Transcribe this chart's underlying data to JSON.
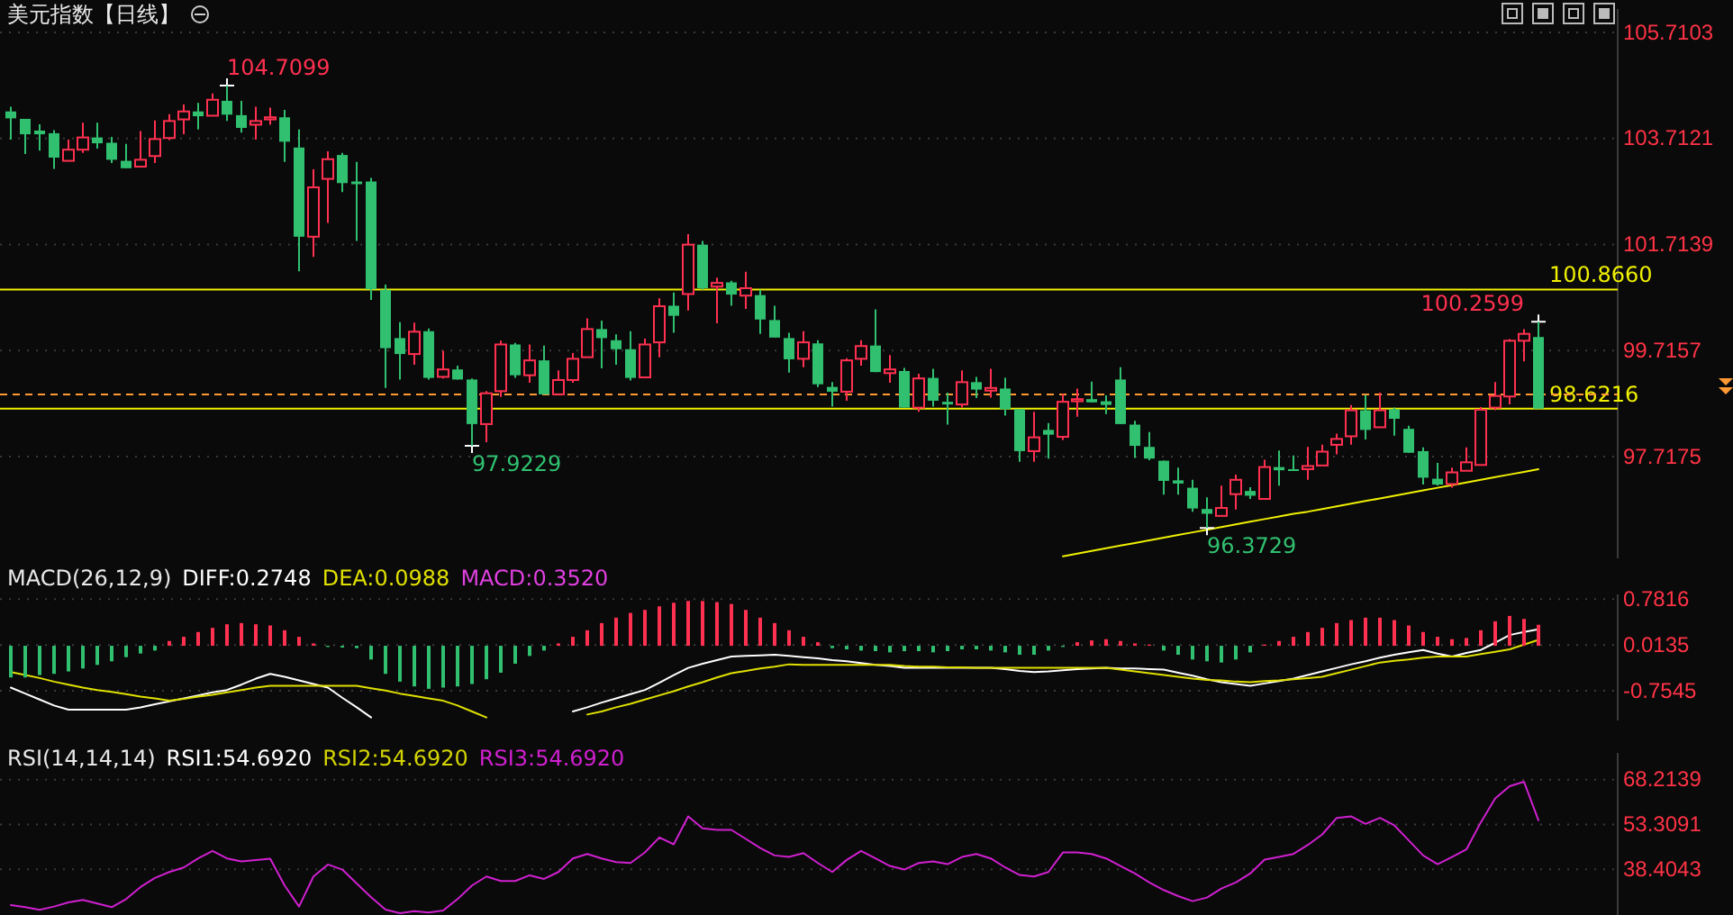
{
  "chart_data": [
    {
      "type": "candlestick",
      "title": "美元指数【日线】",
      "categories": [
        null,
        null,
        null,
        null,
        null,
        null,
        null,
        null,
        null,
        null,
        null,
        null,
        null,
        null,
        null,
        null,
        null,
        null,
        null,
        null,
        null,
        null,
        null,
        null,
        null,
        null,
        null,
        null,
        null,
        null,
        null,
        null,
        null,
        null,
        null,
        null,
        null,
        null,
        null,
        null,
        null,
        null,
        null,
        null,
        null,
        null,
        null,
        null,
        null,
        null,
        null,
        null,
        null,
        null,
        null,
        null,
        null,
        null,
        null,
        null,
        null,
        null,
        null,
        null,
        null,
        null,
        null,
        null,
        null,
        null,
        null,
        null,
        null,
        null,
        null,
        null,
        null,
        null,
        null,
        null,
        null,
        null,
        null,
        null,
        null,
        null,
        null,
        null,
        null,
        null,
        null,
        null,
        null,
        null,
        null,
        null,
        null,
        null,
        null,
        null,
        null,
        null,
        null,
        null,
        null,
        null,
        null
      ],
      "ohlc": [
        [
          104.22,
          104.31,
          103.69,
          104.09
        ],
        [
          104.08,
          104.08,
          103.42,
          103.79
        ],
        [
          103.86,
          103.98,
          103.48,
          103.79
        ],
        [
          103.81,
          103.87,
          103.14,
          103.35
        ],
        [
          103.29,
          103.69,
          103.29,
          103.5
        ],
        [
          103.5,
          104.01,
          103.44,
          103.73
        ],
        [
          103.73,
          104.01,
          103.52,
          103.62
        ],
        [
          103.63,
          103.74,
          103.25,
          103.31
        ],
        [
          103.29,
          103.61,
          103.15,
          103.15
        ],
        [
          103.18,
          103.85,
          103.18,
          103.31
        ],
        [
          103.38,
          104.05,
          103.25,
          103.7
        ],
        [
          103.72,
          104.17,
          103.68,
          104.04
        ],
        [
          104.07,
          104.35,
          103.79,
          104.22
        ],
        [
          104.22,
          104.38,
          103.88,
          104.13
        ],
        [
          104.14,
          104.56,
          104.14,
          104.44
        ],
        [
          104.42,
          104.7099,
          104.04,
          104.16
        ],
        [
          104.15,
          104.42,
          103.82,
          103.91
        ],
        [
          103.97,
          104.31,
          103.69,
          104.04
        ],
        [
          104.07,
          104.29,
          103.97,
          104.11
        ],
        [
          104.11,
          104.25,
          103.27,
          103.65
        ],
        [
          103.54,
          103.88,
          101.21,
          101.86
        ],
        [
          101.86,
          103.13,
          101.48,
          102.79
        ],
        [
          102.95,
          103.47,
          102.12,
          103.32
        ],
        [
          103.4,
          103.44,
          102.7,
          102.87
        ],
        [
          102.9,
          103.27,
          101.78,
          102.85
        ],
        [
          102.9,
          102.97,
          100.67,
          100.87
        ],
        [
          100.86,
          100.96,
          99.01,
          99.76
        ],
        [
          99.95,
          100.25,
          99.17,
          99.65
        ],
        [
          99.65,
          100.24,
          99.45,
          100.07
        ],
        [
          100.08,
          100.13,
          99.17,
          99.2
        ],
        [
          99.22,
          99.71,
          99.19,
          99.36
        ],
        [
          99.36,
          99.43,
          99.17,
          99.17
        ],
        [
          99.17,
          99.19,
          97.9229,
          98.33
        ],
        [
          98.33,
          98.95,
          97.99,
          98.91
        ],
        [
          98.95,
          99.9,
          98.84,
          99.83
        ],
        [
          99.83,
          99.86,
          99.2,
          99.25
        ],
        [
          99.25,
          99.83,
          99.11,
          99.53
        ],
        [
          99.53,
          99.81,
          98.89,
          98.89
        ],
        [
          98.89,
          99.34,
          98.89,
          99.16
        ],
        [
          99.16,
          99.67,
          99.11,
          99.56
        ],
        [
          99.59,
          100.32,
          99.59,
          100.12
        ],
        [
          100.12,
          100.28,
          99.38,
          99.95
        ],
        [
          99.91,
          100.02,
          99.45,
          99.74
        ],
        [
          99.74,
          100.08,
          99.15,
          99.2
        ],
        [
          99.21,
          99.94,
          99.21,
          99.83
        ],
        [
          99.87,
          100.7,
          99.59,
          100.55
        ],
        [
          100.56,
          100.81,
          100.05,
          100.37
        ],
        [
          100.78,
          101.91,
          100.47,
          101.71
        ],
        [
          101.71,
          101.78,
          100.86,
          100.89
        ],
        [
          100.92,
          101.09,
          100.23,
          100.99
        ],
        [
          101.0,
          101.03,
          100.56,
          100.77
        ],
        [
          100.75,
          101.2,
          100.5,
          100.89
        ],
        [
          100.76,
          100.86,
          100.03,
          100.3
        ],
        [
          100.29,
          100.56,
          99.96,
          99.96
        ],
        [
          99.95,
          100.05,
          99.3,
          99.55
        ],
        [
          99.56,
          100.08,
          99.4,
          99.87
        ],
        [
          99.85,
          99.91,
          99.03,
          99.08
        ],
        [
          99.03,
          99.12,
          98.66,
          98.94
        ],
        [
          98.94,
          99.57,
          98.77,
          99.53
        ],
        [
          99.56,
          99.91,
          99.43,
          99.8
        ],
        [
          99.81,
          100.49,
          99.31,
          99.31
        ],
        [
          99.29,
          99.63,
          99.11,
          99.36
        ],
        [
          99.33,
          99.39,
          98.64,
          98.64
        ],
        [
          98.64,
          99.28,
          98.56,
          99.19
        ],
        [
          99.2,
          99.37,
          98.66,
          98.77
        ],
        [
          98.75,
          98.92,
          98.32,
          98.7
        ],
        [
          98.7,
          99.34,
          98.64,
          99.12
        ],
        [
          99.12,
          99.22,
          98.82,
          98.98
        ],
        [
          98.96,
          99.37,
          98.83,
          99.01
        ],
        [
          99.0,
          99.2,
          98.49,
          98.61
        ],
        [
          98.61,
          98.61,
          97.62,
          97.82
        ],
        [
          97.82,
          98.56,
          97.62,
          98.08
        ],
        [
          98.22,
          98.35,
          97.68,
          98.13
        ],
        [
          98.09,
          98.9,
          98.03,
          98.75
        ],
        [
          98.76,
          99.0,
          98.47,
          98.8
        ],
        [
          98.8,
          99.13,
          98.74,
          98.74
        ],
        [
          98.76,
          98.87,
          98.52,
          98.69
        ],
        [
          99.17,
          99.4,
          98.33,
          98.33
        ],
        [
          98.32,
          98.39,
          97.69,
          97.92
        ],
        [
          97.9,
          98.18,
          97.65,
          97.68
        ],
        [
          97.64,
          97.64,
          97.0,
          97.26
        ],
        [
          97.27,
          97.51,
          97.0,
          97.21
        ],
        [
          97.13,
          97.28,
          96.68,
          96.74
        ],
        [
          96.73,
          96.95,
          96.3729,
          96.64
        ],
        [
          96.6,
          97.17,
          96.6,
          96.75
        ],
        [
          97.01,
          97.38,
          96.72,
          97.28
        ],
        [
          97.07,
          97.14,
          96.92,
          96.98
        ],
        [
          96.92,
          97.66,
          96.92,
          97.52
        ],
        [
          97.52,
          97.83,
          97.17,
          97.46
        ],
        [
          97.48,
          97.74,
          97.45,
          97.45
        ],
        [
          97.48,
          97.9,
          97.28,
          97.54
        ],
        [
          97.55,
          97.94,
          97.55,
          97.81
        ],
        [
          97.94,
          98.15,
          97.76,
          98.05
        ],
        [
          98.1,
          98.69,
          97.94,
          98.59
        ],
        [
          98.59,
          98.88,
          98.04,
          98.22
        ],
        [
          98.27,
          98.92,
          98.27,
          98.59
        ],
        [
          98.61,
          98.64,
          98.11,
          98.43
        ],
        [
          98.24,
          98.3,
          97.79,
          97.79
        ],
        [
          97.82,
          97.89,
          97.19,
          97.32
        ],
        [
          97.3,
          97.6,
          97.17,
          97.19
        ],
        [
          97.2,
          97.51,
          97.13,
          97.42
        ],
        [
          97.45,
          97.89,
          97.45,
          97.61
        ],
        [
          97.56,
          98.65,
          97.56,
          98.6
        ],
        [
          98.64,
          99.12,
          98.59,
          98.86
        ],
        [
          98.85,
          99.93,
          98.7,
          99.9
        ],
        [
          99.9,
          100.12,
          99.51,
          100.03
        ],
        [
          99.97,
          100.2599,
          98.62,
          98.62
        ]
      ],
      "series": [
        {
          "type": "line",
          "color": "#f0f000",
          "values": [
            null,
            null,
            null,
            null,
            null,
            null,
            null,
            null,
            null,
            null,
            null,
            null,
            null,
            null,
            null,
            null,
            null,
            null,
            null,
            null,
            null,
            null,
            null,
            null,
            null,
            null,
            null,
            null,
            null,
            null,
            null,
            null,
            null,
            null,
            null,
            null,
            null,
            null,
            null,
            null,
            null,
            null,
            null,
            null,
            null,
            null,
            null,
            null,
            null,
            null,
            null,
            null,
            null,
            null,
            null,
            null,
            null,
            null,
            null,
            null,
            null,
            null,
            null,
            null,
            null,
            null,
            null,
            null,
            null,
            null,
            null,
            null,
            null,
            95.84,
            95.89,
            95.94,
            95.99,
            96.04,
            96.09,
            96.14,
            96.19,
            96.24,
            96.29,
            96.34,
            96.39,
            96.44,
            96.49,
            96.54,
            96.59,
            96.64,
            96.68,
            96.73,
            96.78,
            96.83,
            96.88,
            96.93,
            96.98,
            97.03,
            97.08,
            97.13,
            97.18,
            97.23,
            97.28,
            97.33,
            97.38,
            97.43,
            97.48
          ]
        }
      ],
      "ylim": [
        95.8,
        106.15
      ],
      "yticks": [
        105.7103,
        103.7121,
        101.7139,
        99.7157,
        97.7175
      ],
      "grid": "y",
      "tick_labels": "y",
      "ref_lines": [
        {
          "axis": "y",
          "value": 100.866,
          "label": "100.8660",
          "color": "#f0f000"
        },
        {
          "axis": "y",
          "value": 98.6216,
          "label": "98.6216",
          "color": "#f0f000"
        },
        {
          "axis": "y",
          "value": 98.89,
          "color": "#ff9933",
          "line_style": "dashed"
        }
      ],
      "annotations": [
        "104.7099",
        "97.9229",
        "96.3729",
        "100.2599"
      ]
    },
    {
      "type": "bar",
      "title": "MACD(26,12,9)",
      "categories": [
        null,
        null,
        null,
        null,
        null,
        null,
        null,
        null,
        null,
        null,
        null,
        null,
        null,
        null,
        null,
        null,
        null,
        null,
        null,
        null,
        null,
        null,
        null,
        null,
        null,
        null,
        null,
        null,
        null,
        null,
        null,
        null,
        null,
        null,
        null,
        null,
        null,
        null,
        null,
        null,
        null,
        null,
        null,
        null,
        null,
        null,
        null,
        null,
        null,
        null,
        null,
        null,
        null,
        null,
        null,
        null,
        null,
        null,
        null,
        null,
        null,
        null,
        null,
        null,
        null,
        null,
        null,
        null,
        null,
        null,
        null,
        null,
        null,
        null,
        null,
        null,
        null,
        null,
        null,
        null,
        null,
        null,
        null,
        null,
        null,
        null,
        null,
        null,
        null,
        null,
        null,
        null,
        null,
        null,
        null,
        null,
        null,
        null,
        null,
        null,
        null,
        null,
        null,
        null,
        null,
        null,
        null
      ],
      "series": [
        {
          "type": "line",
          "name": "DIFF:0.2748",
          "color": "#ffffff",
          "values": [
            -0.7,
            -0.8,
            -0.9,
            -1.0,
            -1.07,
            -1.07,
            -1.07,
            -1.07,
            -1.07,
            -1.03,
            -0.98,
            -0.93,
            -0.88,
            -0.83,
            -0.78,
            -0.74,
            -0.65,
            -0.55,
            -0.47,
            -0.52,
            -0.58,
            -0.64,
            -0.7,
            -0.87,
            -1.03,
            -1.2,
            null,
            null,
            null,
            null,
            null,
            null,
            null,
            null,
            null,
            null,
            null,
            null,
            null,
            -1.1,
            -1.03,
            -0.95,
            -0.88,
            -0.81,
            -0.74,
            -0.62,
            -0.49,
            -0.37,
            -0.3,
            -0.24,
            -0.18,
            -0.17,
            -0.16,
            -0.15,
            -0.17,
            -0.19,
            -0.21,
            -0.24,
            -0.26,
            -0.29,
            -0.32,
            -0.34,
            -0.37,
            -0.37,
            -0.37,
            -0.37,
            -0.37,
            -0.37,
            -0.37,
            -0.39,
            -0.42,
            -0.44,
            -0.43,
            -0.41,
            -0.39,
            -0.38,
            -0.37,
            -0.38,
            -0.38,
            -0.39,
            -0.4,
            -0.45,
            -0.5,
            -0.56,
            -0.61,
            -0.64,
            -0.67,
            -0.63,
            -0.59,
            -0.55,
            -0.49,
            -0.43,
            -0.37,
            -0.31,
            -0.26,
            -0.2,
            -0.15,
            -0.11,
            -0.07,
            -0.13,
            -0.18,
            -0.12,
            -0.07,
            0.05,
            0.18,
            0.23,
            0.2748
          ]
        },
        {
          "type": "line",
          "name": "DEA:0.0988",
          "color": "#e0e000",
          "values": [
            -0.44,
            -0.49,
            -0.54,
            -0.6,
            -0.65,
            -0.7,
            -0.74,
            -0.77,
            -0.81,
            -0.85,
            -0.88,
            -0.92,
            -0.89,
            -0.85,
            -0.82,
            -0.78,
            -0.74,
            -0.7,
            -0.67,
            -0.67,
            -0.67,
            -0.67,
            -0.67,
            -0.67,
            -0.67,
            -0.71,
            -0.75,
            -0.8,
            -0.84,
            -0.88,
            -0.92,
            -1.0,
            -1.1,
            -1.2,
            null,
            null,
            null,
            null,
            null,
            null,
            -1.15,
            -1.1,
            -1.03,
            -0.97,
            -0.9,
            -0.83,
            -0.76,
            -0.68,
            -0.61,
            -0.53,
            -0.46,
            -0.42,
            -0.38,
            -0.35,
            -0.31,
            -0.32,
            -0.32,
            -0.32,
            -0.32,
            -0.32,
            -0.32,
            -0.32,
            -0.34,
            -0.35,
            -0.35,
            -0.36,
            -0.36,
            -0.37,
            -0.37,
            -0.37,
            -0.37,
            -0.37,
            -0.37,
            -0.37,
            -0.37,
            -0.37,
            -0.37,
            -0.4,
            -0.43,
            -0.46,
            -0.49,
            -0.52,
            -0.55,
            -0.57,
            -0.58,
            -0.6,
            -0.61,
            -0.59,
            -0.58,
            -0.56,
            -0.54,
            -0.52,
            -0.46,
            -0.4,
            -0.34,
            -0.28,
            -0.25,
            -0.23,
            -0.2,
            -0.18,
            -0.18,
            -0.18,
            -0.14,
            -0.1,
            -0.06,
            0.02,
            0.0988
          ]
        },
        {
          "type": "bar",
          "name": "MACD:0.3520",
          "color": "#e040e0",
          "values": [
            -0.53,
            -0.53,
            -0.49,
            -0.47,
            -0.43,
            -0.38,
            -0.32,
            -0.26,
            -0.19,
            -0.13,
            -0.08,
            0.08,
            0.15,
            0.23,
            0.3,
            0.36,
            0.38,
            0.36,
            0.34,
            0.26,
            0.15,
            0.04,
            -0.02,
            -0.03,
            -0.04,
            -0.23,
            -0.47,
            -0.6,
            -0.68,
            -0.72,
            -0.7,
            -0.68,
            -0.64,
            -0.56,
            -0.45,
            -0.3,
            -0.17,
            -0.08,
            0.04,
            0.15,
            0.26,
            0.38,
            0.47,
            0.55,
            0.6,
            0.66,
            0.72,
            0.75,
            0.75,
            0.73,
            0.7,
            0.6,
            0.47,
            0.38,
            0.26,
            0.15,
            0.06,
            -0.04,
            -0.06,
            -0.08,
            -0.09,
            -0.11,
            -0.09,
            -0.09,
            -0.11,
            -0.09,
            -0.06,
            -0.06,
            -0.08,
            -0.11,
            -0.15,
            -0.15,
            -0.08,
            -0.02,
            0.06,
            0.09,
            0.11,
            0.08,
            0.04,
            0.02,
            -0.08,
            -0.15,
            -0.23,
            -0.26,
            -0.28,
            -0.23,
            -0.11,
            0.02,
            0.08,
            0.15,
            0.23,
            0.3,
            0.38,
            0.43,
            0.47,
            0.47,
            0.43,
            0.34,
            0.23,
            0.15,
            0.11,
            0.13,
            0.26,
            0.41,
            0.5,
            0.45,
            0.352
          ],
          "colors": [
            "#30c070",
            "#30c070",
            "#30c070",
            "#30c070",
            "#30c070",
            "#30c070",
            "#30c070",
            "#30c070",
            "#30c070",
            "#30c070",
            "#30c070",
            "#ff3050",
            "#ff3050",
            "#ff3050",
            "#ff3050",
            "#ff3050",
            "#ff3050",
            "#ff3050",
            "#ff3050",
            "#ff3050",
            "#ff3050",
            "#ff3050",
            "#30c070",
            "#30c070",
            "#30c070",
            "#30c070",
            "#30c070",
            "#30c070",
            "#30c070",
            "#30c070",
            "#30c070",
            "#30c070",
            "#30c070",
            "#30c070",
            "#30c070",
            "#30c070",
            "#30c070",
            "#30c070",
            "#ff3050",
            "#ff3050",
            "#ff3050",
            "#ff3050",
            "#ff3050",
            "#ff3050",
            "#ff3050",
            "#ff3050",
            "#ff3050",
            "#ff3050",
            "#ff3050",
            "#ff3050",
            "#ff3050",
            "#ff3050",
            "#ff3050",
            "#ff3050",
            "#ff3050",
            "#ff3050",
            "#ff3050",
            "#30c070",
            "#30c070",
            "#30c070",
            "#30c070",
            "#30c070",
            "#30c070",
            "#30c070",
            "#30c070",
            "#30c070",
            "#30c070",
            "#30c070",
            "#30c070",
            "#30c070",
            "#30c070",
            "#30c070",
            "#30c070",
            "#30c070",
            "#ff3050",
            "#ff3050",
            "#ff3050",
            "#ff3050",
            "#ff3050",
            "#ff3050",
            "#30c070",
            "#30c070",
            "#30c070",
            "#30c070",
            "#30c070",
            "#30c070",
            "#30c070",
            "#ff3050",
            "#ff3050",
            "#ff3050",
            "#ff3050",
            "#ff3050",
            "#ff3050",
            "#ff3050",
            "#ff3050",
            "#ff3050",
            "#ff3050",
            "#ff3050",
            "#ff3050",
            "#ff3050",
            "#ff3050",
            "#ff3050",
            "#ff3050",
            "#ff3050",
            "#ff3050",
            "#ff3050",
            "#ff3050"
          ]
        }
      ],
      "ylim": [
        -1.25,
        0.86
      ],
      "yticks": [
        0.7816,
        0.0135,
        -0.7545
      ],
      "grid": "y",
      "tick_labels": "y",
      "legend": "top left"
    },
    {
      "type": "line",
      "title": "RSI(14,14,14)",
      "categories": [
        null,
        null,
        null,
        null,
        null,
        null,
        null,
        null,
        null,
        null,
        null,
        null,
        null,
        null,
        null,
        null,
        null,
        null,
        null,
        null,
        null,
        null,
        null,
        null,
        null,
        null,
        null,
        null,
        null,
        null,
        null,
        null,
        null,
        null,
        null,
        null,
        null,
        null,
        null,
        null,
        null,
        null,
        null,
        null,
        null,
        null,
        null,
        null,
        null,
        null,
        null,
        null,
        null,
        null,
        null,
        null,
        null,
        null,
        null,
        null,
        null,
        null,
        null,
        null,
        null,
        null,
        null,
        null,
        null,
        null,
        null,
        null,
        null,
        null,
        null,
        null,
        null,
        null,
        null,
        null,
        null,
        null,
        null,
        null,
        null,
        null,
        null,
        null,
        null,
        null,
        null,
        null,
        null,
        null,
        null,
        null,
        null,
        null,
        null,
        null,
        null,
        null,
        null,
        null,
        null,
        null,
        null
      ],
      "series": [
        {
          "name": "RSI1:54.6920",
          "color": "#ffffff",
          "values": [
            null,
            null,
            null,
            null,
            null,
            null,
            null,
            null,
            null,
            null,
            null,
            null,
            null,
            null,
            null,
            null,
            null,
            null,
            null,
            null,
            null,
            null,
            null,
            null,
            null,
            null,
            null,
            null,
            null,
            null,
            null,
            null,
            null,
            null,
            null,
            null,
            null,
            null,
            null,
            null,
            null,
            null,
            null,
            null,
            null,
            null,
            null,
            null,
            null,
            null,
            null,
            null,
            null,
            null,
            null,
            null,
            null,
            null,
            null,
            null,
            null,
            null,
            null,
            null,
            null,
            null,
            null,
            null,
            null,
            null,
            null,
            null,
            null,
            null,
            null,
            null,
            null,
            null,
            null,
            null,
            null,
            null,
            null,
            null,
            null,
            null,
            null,
            null,
            null,
            null,
            null,
            null,
            null,
            null,
            null,
            null,
            null,
            null,
            null,
            null,
            null,
            null,
            null,
            null,
            null,
            null,
            null
          ]
        },
        {
          "name": "RSI2:54.6920",
          "color": "#d4d400",
          "values": [
            null,
            null,
            null,
            null,
            null,
            null,
            null,
            null,
            null,
            null,
            null,
            null,
            null,
            null,
            null,
            null,
            null,
            null,
            null,
            null,
            null,
            null,
            null,
            null,
            null,
            null,
            null,
            null,
            null,
            null,
            null,
            null,
            null,
            null,
            null,
            null,
            null,
            null,
            null,
            null,
            null,
            null,
            null,
            null,
            null,
            null,
            null,
            null,
            null,
            null,
            null,
            null,
            null,
            null,
            null,
            null,
            null,
            null,
            null,
            null,
            null,
            null,
            null,
            null,
            null,
            null,
            null,
            null,
            null,
            null,
            null,
            null,
            null,
            null,
            null,
            null,
            null,
            null,
            null,
            null,
            null,
            null,
            null,
            null,
            null,
            null,
            null,
            null,
            null,
            null,
            null,
            null,
            null,
            null,
            null,
            null,
            null,
            null,
            null,
            null,
            null,
            null,
            null,
            null,
            null,
            null,
            null
          ]
        },
        {
          "name": "RSI3:54.6920",
          "color": "#d020d0",
          "values": [
            26.5,
            25.8,
            24.9,
            26,
            27.4,
            28.2,
            27,
            25.8,
            28.5,
            32.5,
            35.5,
            37.5,
            39,
            42,
            44.5,
            42,
            41,
            41.5,
            41.9,
            33,
            26,
            36,
            40,
            38.3,
            33.7,
            29.1,
            25,
            23.8,
            24.5,
            24,
            24.7,
            28.5,
            33,
            36,
            34.5,
            34.5,
            36.4,
            35.2,
            37.5,
            42,
            43.5,
            42,
            40.8,
            40.5,
            44,
            49,
            46.7,
            56,
            52,
            51.5,
            51.5,
            48.5,
            45.5,
            43,
            42.5,
            43.8,
            40.5,
            37.5,
            41.5,
            44.5,
            42,
            39.5,
            38.3,
            40.5,
            41,
            40.1,
            42.5,
            43.5,
            42,
            39,
            36.5,
            36,
            37.5,
            44,
            44,
            43.5,
            42,
            39.5,
            37,
            34,
            31.5,
            29.5,
            27.8,
            29,
            32,
            34,
            37,
            41.6,
            42.5,
            43.5,
            46.5,
            50,
            55.5,
            56,
            53.5,
            55.5,
            53,
            48,
            43,
            40.1,
            42.5,
            45,
            54,
            62,
            66,
            67.5,
            54.692
          ]
        }
      ],
      "ylim": [
        23.2,
        77.1
      ],
      "yticks": [
        68.2139,
        53.3091,
        38.4043
      ],
      "grid": "y",
      "tick_labels": "y",
      "legend": "top left"
    }
  ]
}
